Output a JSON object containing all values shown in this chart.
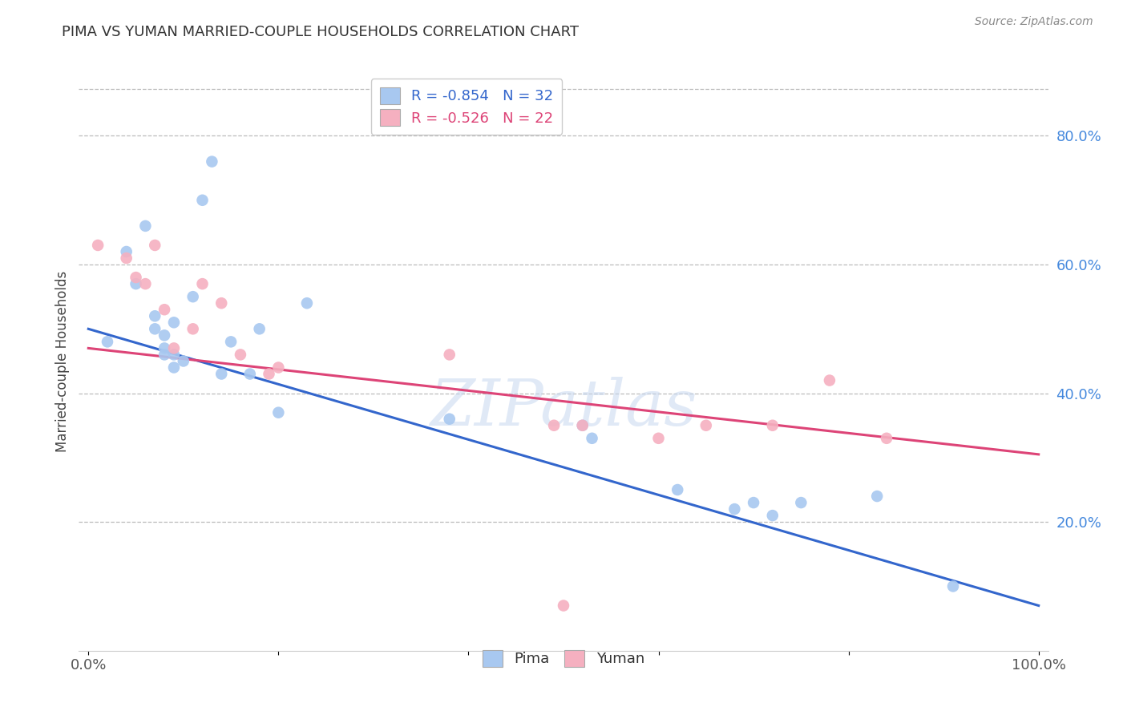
{
  "title": "PIMA VS YUMAN MARRIED-COUPLE HOUSEHOLDS CORRELATION CHART",
  "source": "Source: ZipAtlas.com",
  "ylabel": "Married-couple Households",
  "xlim": [
    0.0,
    1.0
  ],
  "ylim": [
    0.0,
    0.9
  ],
  "ytick_labels_right": [
    "20.0%",
    "40.0%",
    "60.0%",
    "80.0%"
  ],
  "ytick_positions_right": [
    0.2,
    0.4,
    0.6,
    0.8
  ],
  "legend_blue_label": "R = -0.854   N = 32",
  "legend_pink_label": "R = -0.526   N = 22",
  "legend_pima": "Pima",
  "legend_yuman": "Yuman",
  "watermark": "ZIPatlas",
  "blue_color": "#A8C8F0",
  "pink_color": "#F5B0C0",
  "blue_line_color": "#3366CC",
  "pink_line_color": "#DD4477",
  "pima_x": [
    0.02,
    0.04,
    0.05,
    0.06,
    0.07,
    0.07,
    0.08,
    0.08,
    0.08,
    0.09,
    0.09,
    0.09,
    0.1,
    0.11,
    0.12,
    0.13,
    0.14,
    0.15,
    0.17,
    0.18,
    0.2,
    0.23,
    0.38,
    0.52,
    0.53,
    0.62,
    0.68,
    0.7,
    0.72,
    0.75,
    0.83,
    0.91
  ],
  "pima_y": [
    0.48,
    0.62,
    0.57,
    0.66,
    0.5,
    0.52,
    0.47,
    0.49,
    0.46,
    0.51,
    0.46,
    0.44,
    0.45,
    0.55,
    0.7,
    0.76,
    0.43,
    0.48,
    0.43,
    0.5,
    0.37,
    0.54,
    0.36,
    0.35,
    0.33,
    0.25,
    0.22,
    0.23,
    0.21,
    0.23,
    0.24,
    0.1
  ],
  "yuman_x": [
    0.01,
    0.04,
    0.05,
    0.06,
    0.07,
    0.08,
    0.09,
    0.11,
    0.12,
    0.14,
    0.16,
    0.19,
    0.2,
    0.38,
    0.49,
    0.52,
    0.6,
    0.65,
    0.72,
    0.78,
    0.84,
    0.5
  ],
  "yuman_y": [
    0.63,
    0.61,
    0.58,
    0.57,
    0.63,
    0.53,
    0.47,
    0.5,
    0.57,
    0.54,
    0.46,
    0.43,
    0.44,
    0.46,
    0.35,
    0.35,
    0.33,
    0.35,
    0.35,
    0.42,
    0.33,
    0.07
  ],
  "blue_trend_x": [
    0.0,
    1.0
  ],
  "blue_trend_y_start": 0.5,
  "blue_trend_y_end": 0.07,
  "pink_trend_x": [
    0.0,
    1.0
  ],
  "pink_trend_y_start": 0.47,
  "pink_trend_y_end": 0.305
}
